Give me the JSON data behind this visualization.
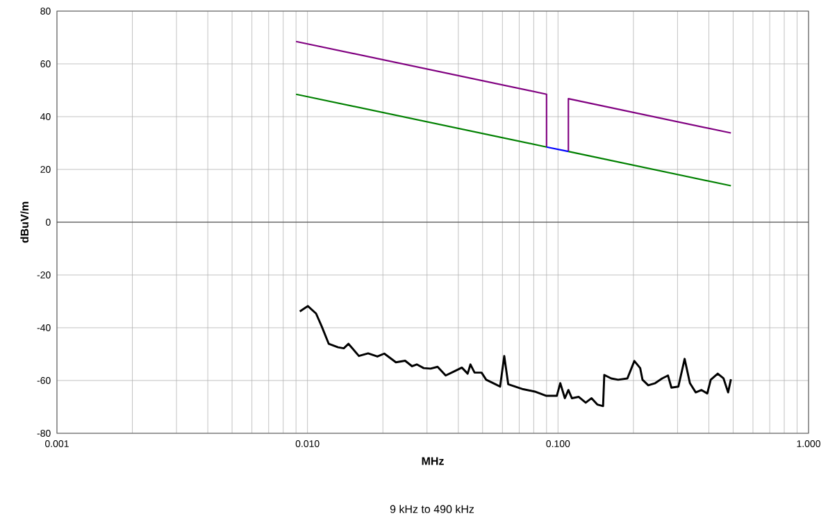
{
  "chart_data": {
    "type": "line",
    "xlabel": "MHz",
    "ylabel": "dBuV/m",
    "log": "x",
    "grid": true,
    "xlim": [
      0.001,
      1.0
    ],
    "ylim": [
      -80,
      80
    ],
    "xticks": [
      {
        "value": 0.001,
        "label": "0.001"
      },
      {
        "value": 0.01,
        "label": "0.010"
      },
      {
        "value": 0.1,
        "label": "0.100"
      },
      {
        "value": 1.0,
        "label": "1.000"
      }
    ],
    "yticks": [
      -80,
      -60,
      -40,
      -20,
      0,
      20,
      40,
      60,
      80
    ],
    "annotations": [
      "9 kHz to 490 kHz"
    ],
    "series": [
      {
        "color": "#800080",
        "x": [
          0.009,
          0.09,
          0.09,
          0.1,
          0.11,
          0.11,
          0.49
        ],
        "values": [
          68.5,
          48.5,
          28.5,
          null,
          26.8,
          46.8,
          33.8
        ]
      },
      {
        "color": "#008000",
        "x": [
          0.009,
          0.09,
          0.1,
          0.11,
          0.49
        ],
        "values": [
          48.5,
          28.5,
          null,
          26.8,
          13.8
        ]
      },
      {
        "color": "#0000ff",
        "x": [
          0.09,
          0.11
        ],
        "values": [
          28.5,
          26.8
        ]
      },
      {
        "color": "#000000",
        "x": [
          0.00932,
          0.01004,
          0.01082,
          0.0114,
          0.01216,
          0.01324,
          0.01396,
          0.01458,
          0.01604,
          0.01746,
          0.01901,
          0.02026,
          0.02254,
          0.02453,
          0.02616,
          0.0273,
          0.0291,
          0.031,
          0.03306,
          0.03562,
          0.03837,
          0.04133,
          0.04359,
          0.04471,
          0.04645,
          0.04952,
          0.05168,
          0.05627,
          0.05873,
          0.06101,
          0.06327,
          0.07263,
          0.08082,
          0.08988,
          0.0989,
          0.1021,
          0.1065,
          0.11,
          0.1136,
          0.121,
          0.129,
          0.1361,
          0.1435,
          0.1513,
          0.153,
          0.1631,
          0.1738,
          0.1892,
          0.2017,
          0.2128,
          0.2174,
          0.2292,
          0.2443,
          0.2604,
          0.2748,
          0.2836,
          0.3023,
          0.3202,
          0.3361,
          0.3546,
          0.374,
          0.3943,
          0.4071,
          0.434,
          0.4578,
          0.4775,
          0.49
        ],
        "values": [
          -33.8,
          -31.8,
          -34.6,
          -39.5,
          -46.1,
          -47.4,
          -47.8,
          -46.1,
          -50.7,
          -49.7,
          -50.9,
          -49.8,
          -53.1,
          -52.5,
          -54.6,
          -53.9,
          -55.3,
          -55.5,
          -54.8,
          -58.1,
          -56.6,
          -55.1,
          -57.4,
          -53.9,
          -57.0,
          -57.0,
          -59.7,
          -61.4,
          -62.3,
          -50.7,
          -61.4,
          -63.3,
          -64.2,
          -65.8,
          -65.8,
          -61.0,
          -66.7,
          -63.6,
          -66.7,
          -66.2,
          -68.4,
          -66.7,
          -69.1,
          -69.7,
          -57.9,
          -59.2,
          -59.7,
          -59.2,
          -52.6,
          -55.3,
          -59.7,
          -61.8,
          -61.0,
          -59.2,
          -58.1,
          -62.7,
          -62.3,
          -51.8,
          -61.0,
          -64.5,
          -63.6,
          -64.9,
          -59.7,
          -57.4,
          -59.2,
          -64.5,
          -59.5
        ]
      }
    ]
  }
}
